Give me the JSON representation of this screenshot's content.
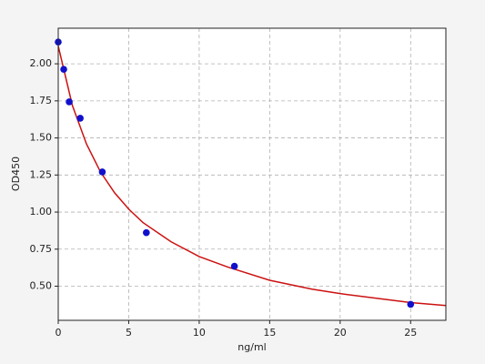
{
  "chart_data": {
    "type": "scatter",
    "xlabel": "ng/ml",
    "ylabel": "OD450",
    "xlim": [
      0,
      27.5
    ],
    "ylim": [
      0.27,
      2.24
    ],
    "xticks": [
      0,
      5,
      10,
      15,
      20,
      25
    ],
    "yticks": [
      {
        "value": 0.5,
        "label": "0.50"
      },
      {
        "value": 0.75,
        "label": "0.75"
      },
      {
        "value": 1.0,
        "label": "1.00"
      },
      {
        "value": 1.25,
        "label": "1.25"
      },
      {
        "value": 1.5,
        "label": "1.50"
      },
      {
        "value": 1.75,
        "label": "1.75"
      },
      {
        "value": 2.0,
        "label": "2.00"
      }
    ],
    "grid": true,
    "series": [
      {
        "type": "line",
        "color": "#cc1111",
        "x": [
          0,
          1,
          2,
          3,
          4,
          5,
          6,
          8,
          10,
          12,
          15,
          18,
          20,
          25,
          27.5
        ],
        "values": [
          2.12,
          1.72,
          1.46,
          1.27,
          1.13,
          1.02,
          0.93,
          0.8,
          0.7,
          0.63,
          0.54,
          0.48,
          0.45,
          0.39,
          0.37
        ]
      },
      {
        "type": "scatter",
        "color": "#1010cc",
        "x": [
          0,
          0.39,
          0.78,
          1.56,
          3.125,
          6.25,
          12.5,
          25
        ],
        "values": [
          2.147,
          1.963,
          1.743,
          1.633,
          1.271,
          0.861,
          0.635,
          0.378
        ]
      }
    ]
  }
}
